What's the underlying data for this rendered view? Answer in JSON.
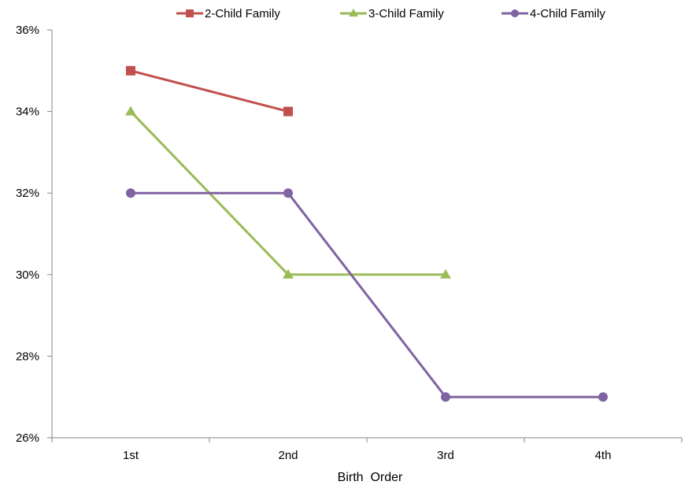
{
  "chart_data": {
    "type": "line",
    "title": "",
    "xlabel": "Birth  Order",
    "ylabel": "",
    "categories": [
      "1st",
      "2nd",
      "3rd",
      "4th"
    ],
    "ylim": [
      26,
      36
    ],
    "ytick_step": 2,
    "y_tick_format": "percent",
    "grid": false,
    "legend_position": "top",
    "series": [
      {
        "name": "2-Child Family",
        "color": "#c0504d",
        "marker": "square",
        "values": [
          35,
          34,
          null,
          null
        ]
      },
      {
        "name": "3-Child Family",
        "color": "#9bbb59",
        "marker": "triangle",
        "values": [
          34,
          30,
          30,
          null
        ]
      },
      {
        "name": "4-Child Family",
        "color": "#8064a2",
        "marker": "circle",
        "values": [
          32,
          32,
          27,
          27
        ]
      }
    ]
  }
}
